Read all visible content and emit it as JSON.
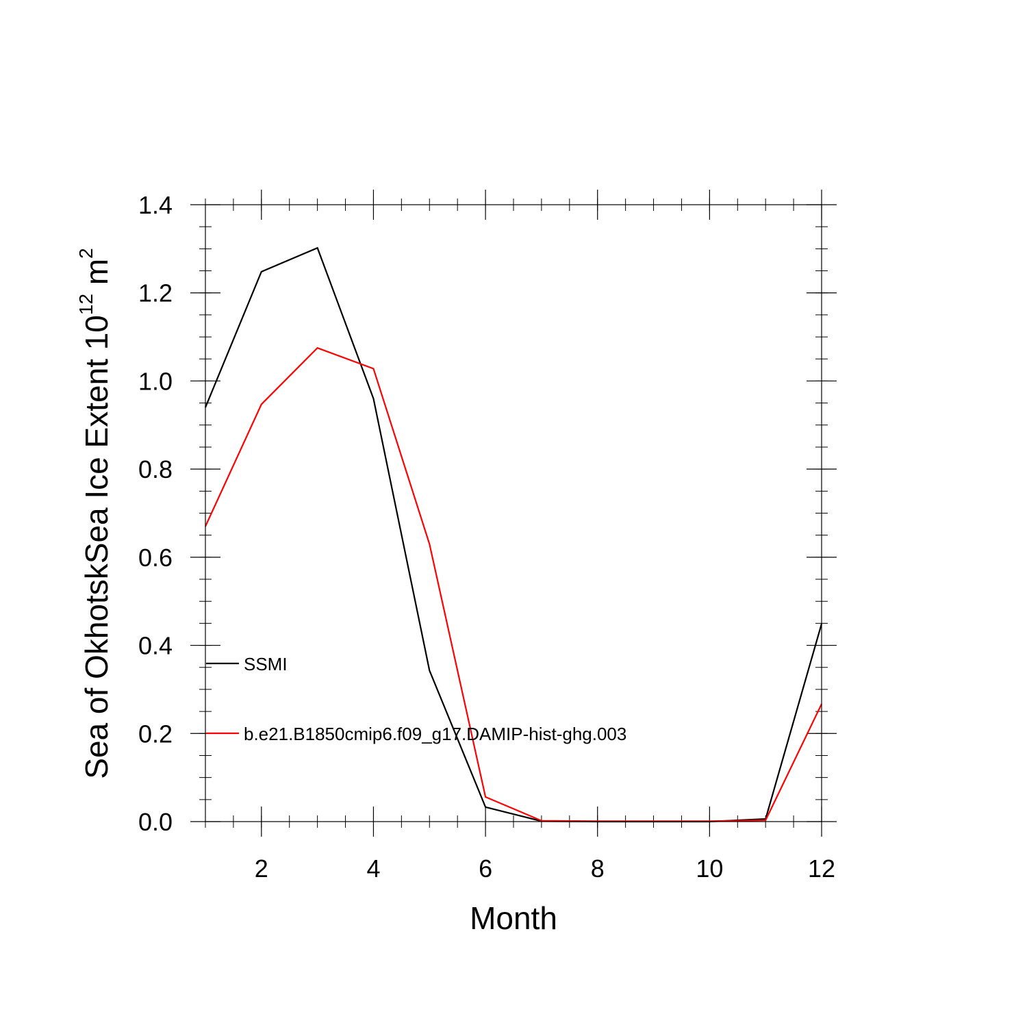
{
  "chart_data": {
    "type": "line",
    "title": "",
    "xlabel": "Month",
    "ylabel": {
      "prefix": "Sea of OkhotskSea Ice Extent 10",
      "exp1": "12",
      "mid": " m",
      "exp2": "2"
    },
    "xlim": [
      1,
      12
    ],
    "ylim": [
      0,
      1.4
    ],
    "x_ticks": [
      2,
      4,
      6,
      8,
      10,
      12
    ],
    "x_tick_labels": [
      "2",
      "4",
      "6",
      "8",
      "10",
      "12"
    ],
    "y_ticks": [
      0,
      0.2,
      0.4,
      0.6,
      0.8,
      1.0,
      1.2,
      1.4
    ],
    "y_tick_labels": [
      "0.0",
      "0.2",
      "0.4",
      "0.6",
      "0.8",
      "1.0",
      "1.2",
      "1.4"
    ],
    "x": [
      1,
      2,
      3,
      4,
      5,
      6,
      7,
      8,
      9,
      10,
      11,
      12
    ],
    "grid": false,
    "series": [
      {
        "name": "SSMI",
        "color": "#000000",
        "values": [
          0.94,
          1.248,
          1.302,
          0.96,
          0.343,
          0.033,
          0.001,
          0.0,
          0.0,
          0.0,
          0.006,
          0.449
        ]
      },
      {
        "name": "b.e21.B1850cmip6.f09_g17.DAMIP-hist-ghg.003",
        "color": "#ff0000",
        "values": [
          0.67,
          0.947,
          1.075,
          1.028,
          0.63,
          0.056,
          0.002,
          0.001,
          0.001,
          0.001,
          0.003,
          0.267
        ]
      }
    ],
    "legend": {
      "placement": "lower-left",
      "entries": [
        "SSMI",
        "b.e21.B1850cmip6.f09_g17.DAMIP-hist-ghg.003"
      ]
    }
  }
}
